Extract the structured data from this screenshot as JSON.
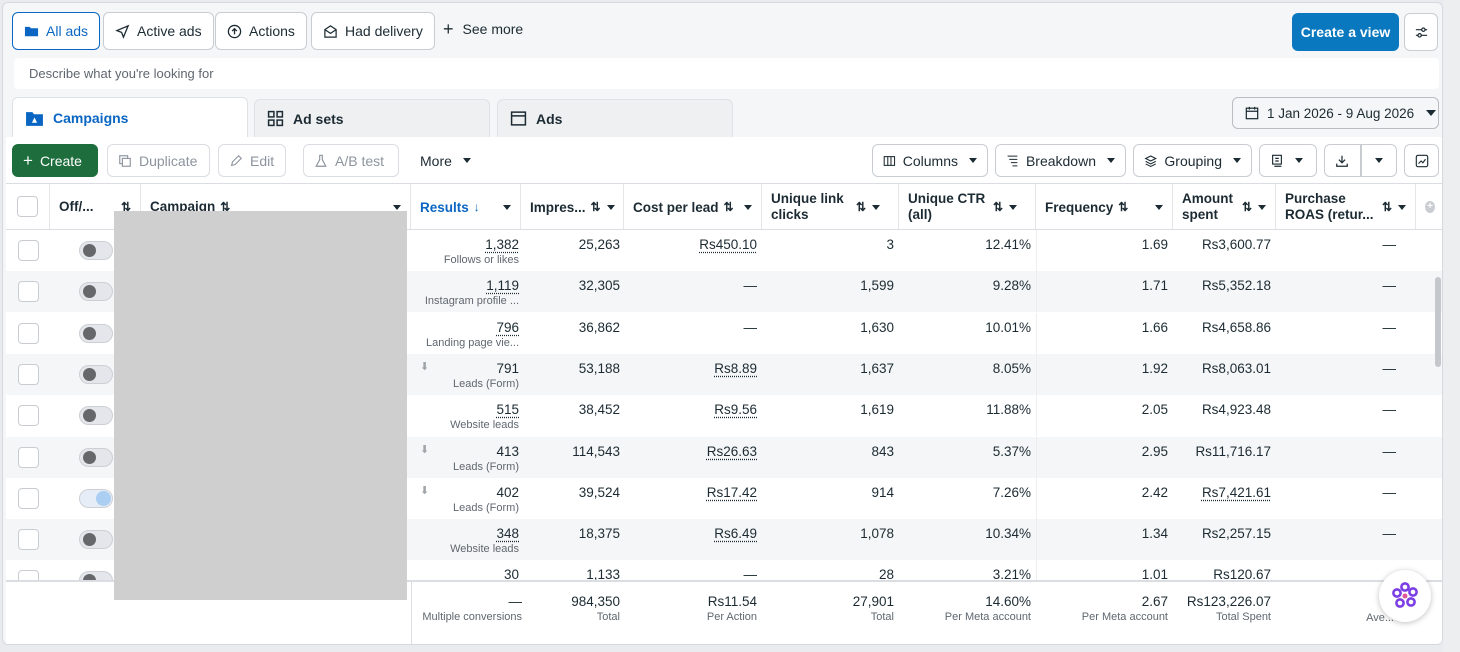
{
  "top_filters": {
    "all_ads": "All ads",
    "active_ads": "Active ads",
    "actions": "Actions",
    "had_delivery": "Had delivery",
    "see_more": "See more",
    "create_view": "Create a view"
  },
  "search": {
    "placeholder": "Describe what you're looking for"
  },
  "tabs": {
    "campaigns": "Campaigns",
    "ad_sets": "Ad sets",
    "ads": "Ads"
  },
  "date_range": "1 Jan 2026 - 9 Aug 2026",
  "toolbar": {
    "create": "Create",
    "duplicate": "Duplicate",
    "edit": "Edit",
    "ab_test": "A/B test",
    "more": "More",
    "columns": "Columns",
    "breakdown": "Breakdown",
    "grouping": "Grouping"
  },
  "columns": {
    "off_on": "Off/...",
    "campaign": "Campaign",
    "results": "Results",
    "impressions": "Impres...",
    "cost_per_lead": "Cost per lead",
    "unique_link_clicks": "Unique link clicks",
    "unique_ctr": "Unique CTR (all)",
    "frequency": "Frequency",
    "amount_spent": "Amount spent",
    "purchase_roas": "Purchase ROAS (retur..."
  },
  "rows": [
    {
      "toggle": "off",
      "download": false,
      "results": "1,382",
      "result_type": "Follows or likes",
      "impressions": "25,263",
      "cpl": "Rs450.10",
      "clicks": "3",
      "ctr": "12.41%",
      "freq": "1.69",
      "spent": "Rs3,600.77",
      "roas": "—"
    },
    {
      "toggle": "off",
      "download": false,
      "results": "1,119",
      "result_type": "Instagram profile ...",
      "impressions": "32,305",
      "cpl": "—",
      "clicks": "1,599",
      "ctr": "9.28%",
      "freq": "1.71",
      "spent": "Rs5,352.18",
      "roas": "—"
    },
    {
      "toggle": "off",
      "download": false,
      "results": "796",
      "result_type": "Landing page vie...",
      "impressions": "36,862",
      "cpl": "—",
      "clicks": "1,630",
      "ctr": "10.01%",
      "freq": "1.66",
      "spent": "Rs4,658.86",
      "roas": "—"
    },
    {
      "toggle": "off",
      "download": true,
      "results": "791",
      "result_type": "Leads (Form)",
      "impressions": "53,188",
      "cpl": "Rs8.89",
      "clicks": "1,637",
      "ctr": "8.05%",
      "freq": "1.92",
      "spent": "Rs8,063.01",
      "roas": "—"
    },
    {
      "toggle": "off",
      "download": false,
      "results": "515",
      "result_type": "Website leads",
      "impressions": "38,452",
      "cpl": "Rs9.56",
      "clicks": "1,619",
      "ctr": "11.88%",
      "freq": "2.05",
      "spent": "Rs4,923.48",
      "roas": "—"
    },
    {
      "toggle": "off",
      "download": true,
      "results": "413",
      "result_type": "Leads (Form)",
      "impressions": "114,543",
      "cpl": "Rs26.63",
      "clicks": "843",
      "ctr": "5.37%",
      "freq": "2.95",
      "spent": "Rs11,716.17",
      "roas": "—"
    },
    {
      "toggle": "on",
      "download": true,
      "results": "402",
      "result_type": "Leads (Form)",
      "impressions": "39,524",
      "cpl": "Rs17.42",
      "clicks": "914",
      "ctr": "7.26%",
      "freq": "2.42",
      "spent": "Rs7,421.61",
      "roas": "—"
    },
    {
      "toggle": "off",
      "download": false,
      "results": "348",
      "result_type": "Website leads",
      "impressions": "18,375",
      "cpl": "Rs6.49",
      "clicks": "1,078",
      "ctr": "10.34%",
      "freq": "1.34",
      "spent": "Rs2,257.15",
      "roas": "—"
    },
    {
      "toggle": "off",
      "download": false,
      "results": "30",
      "result_type": "",
      "impressions": "1,133",
      "cpl": "—",
      "clicks": "28",
      "ctr": "3.21%",
      "freq": "1.01",
      "spent": "Rs120.67",
      "roas": ""
    }
  ],
  "totals": {
    "results": "—",
    "results_sub": "Multiple conversions",
    "impressions": "984,350",
    "impressions_sub": "Total",
    "cpl": "Rs11.54",
    "cpl_sub": "Per Action",
    "clicks": "27,901",
    "clicks_sub": "Total",
    "ctr": "14.60%",
    "ctr_sub": "Per Meta account",
    "freq": "2.67",
    "freq_sub": "Per Meta account",
    "spent": "Rs123,226.07",
    "spent_sub": "Total Spent",
    "roas_sub": "Ave..."
  },
  "colors": {
    "accent": "#0a78be",
    "create_green": "#1d6e3c",
    "link_blue": "#0a66c2"
  }
}
